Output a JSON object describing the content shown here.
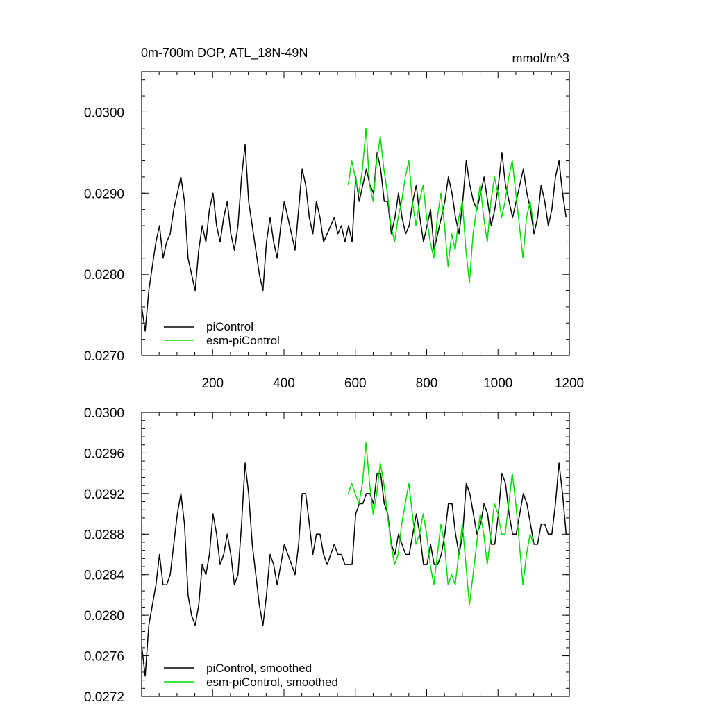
{
  "chart_data": [
    {
      "type": "line",
      "title": "0m-700m DOP, ATL_18N-49N",
      "units": "mmol/m^3",
      "xlabel": "",
      "ylabel": "",
      "xlim": [
        1,
        1200
      ],
      "ylim": [
        0.027,
        0.0305
      ],
      "xticks": [
        200,
        400,
        600,
        800,
        1000,
        1200
      ],
      "xtick_labels": [
        "200",
        "400",
        "600",
        "800",
        "1000",
        "1200"
      ],
      "yticks": [
        0.027,
        0.028,
        0.029,
        0.03
      ],
      "ytick_labels": [
        "0.0270",
        "0.0280",
        "0.0290",
        "0.0300"
      ],
      "grid": false,
      "legend_position": "bottom-left",
      "series": [
        {
          "name": "piControl",
          "color": "#000000",
          "x_start": 1,
          "x_step": 10,
          "values": [
            0.0276,
            0.0273,
            0.0278,
            0.0281,
            0.0284,
            0.0286,
            0.0282,
            0.0284,
            0.0285,
            0.0288,
            0.029,
            0.0292,
            0.0289,
            0.0282,
            0.028,
            0.0278,
            0.0283,
            0.0286,
            0.0284,
            0.0288,
            0.029,
            0.0286,
            0.0284,
            0.0287,
            0.0289,
            0.0285,
            0.0283,
            0.0286,
            0.0292,
            0.0296,
            0.0289,
            0.0286,
            0.0283,
            0.028,
            0.0278,
            0.0284,
            0.0287,
            0.0284,
            0.0282,
            0.0286,
            0.0289,
            0.0287,
            0.0285,
            0.0283,
            0.0288,
            0.0293,
            0.0291,
            0.0287,
            0.0285,
            0.0289,
            0.0287,
            0.0284,
            0.0285,
            0.0286,
            0.0287,
            0.0285,
            0.0286,
            0.0284,
            0.0286,
            0.0284,
            0.0292,
            0.0289,
            0.0291,
            0.0293,
            0.0291,
            0.029,
            0.0295,
            0.0293,
            0.0289,
            0.0289,
            0.0285,
            0.0287,
            0.029,
            0.0287,
            0.0285,
            0.0286,
            0.0289,
            0.0291,
            0.0287,
            0.0284,
            0.0286,
            0.0288,
            0.0283,
            0.0285,
            0.0287,
            0.0289,
            0.0292,
            0.029,
            0.0287,
            0.0285,
            0.0289,
            0.0294,
            0.0291,
            0.0289,
            0.0288,
            0.029,
            0.0292,
            0.0289,
            0.0286,
            0.0288,
            0.0291,
            0.0295,
            0.0291,
            0.0289,
            0.0287,
            0.0289,
            0.0291,
            0.0293,
            0.029,
            0.0288,
            0.0285,
            0.0287,
            0.0291,
            0.0289,
            0.0286,
            0.0288,
            0.0292,
            0.0294,
            0.029,
            0.0287
          ]
        },
        {
          "name": "esm-piControl",
          "color": "#00dd00",
          "x_start": 580,
          "x_step": 10,
          "values": [
            0.0291,
            0.0294,
            0.0292,
            0.029,
            0.0293,
            0.0298,
            0.0291,
            0.0289,
            0.0294,
            0.0297,
            0.0293,
            0.029,
            0.0286,
            0.0284,
            0.0287,
            0.0289,
            0.0292,
            0.0294,
            0.0289,
            0.0286,
            0.0289,
            0.0291,
            0.0287,
            0.0284,
            0.0282,
            0.0287,
            0.029,
            0.0286,
            0.0281,
            0.0285,
            0.0283,
            0.0287,
            0.0289,
            0.0283,
            0.0279,
            0.0285,
            0.0288,
            0.0291,
            0.0287,
            0.0284,
            0.0289,
            0.0292,
            0.029,
            0.0287,
            0.0289,
            0.0292,
            0.0294,
            0.029,
            0.0286,
            0.0282,
            0.0287,
            0.0289,
            0.0286
          ]
        }
      ]
    },
    {
      "type": "line",
      "title": "",
      "xlabel": "",
      "ylabel": "",
      "xlim": [
        1,
        1200
      ],
      "ylim": [
        0.0272,
        0.03
      ],
      "xticks": [
        200,
        400,
        600,
        800,
        1000,
        1200
      ],
      "yticks": [
        0.0272,
        0.0276,
        0.028,
        0.0284,
        0.0288,
        0.0292,
        0.0296,
        0.03
      ],
      "ytick_labels": [
        "0.0272",
        "0.0276",
        "0.0280",
        "0.0284",
        "0.0288",
        "0.0292",
        "0.0296",
        "0.0300"
      ],
      "grid": false,
      "legend_position": "bottom-left",
      "series": [
        {
          "name": "piControl, smoothed",
          "color": "#000000",
          "x_start": 1,
          "x_step": 10,
          "values": [
            0.0277,
            0.0274,
            0.0279,
            0.0281,
            0.0283,
            0.0286,
            0.0283,
            0.0283,
            0.0284,
            0.0287,
            0.029,
            0.0292,
            0.0289,
            0.0282,
            0.028,
            0.0279,
            0.0281,
            0.0285,
            0.0284,
            0.0286,
            0.029,
            0.0288,
            0.0285,
            0.0286,
            0.0288,
            0.0286,
            0.0283,
            0.0284,
            0.0289,
            0.0295,
            0.0292,
            0.0287,
            0.0284,
            0.0281,
            0.0279,
            0.0282,
            0.0286,
            0.0285,
            0.0283,
            0.0285,
            0.0287,
            0.0286,
            0.0285,
            0.0284,
            0.0287,
            0.0292,
            0.0292,
            0.0289,
            0.0286,
            0.0288,
            0.0288,
            0.0286,
            0.0285,
            0.0286,
            0.0287,
            0.0286,
            0.0286,
            0.0285,
            0.0285,
            0.0285,
            0.029,
            0.0291,
            0.0291,
            0.0292,
            0.0292,
            0.0291,
            0.0294,
            0.0294,
            0.0291,
            0.029,
            0.0287,
            0.0286,
            0.0288,
            0.0287,
            0.0286,
            0.0286,
            0.0288,
            0.029,
            0.0288,
            0.0285,
            0.0285,
            0.0287,
            0.0285,
            0.0285,
            0.0286,
            0.0288,
            0.0291,
            0.0291,
            0.0288,
            0.0286,
            0.0288,
            0.0293,
            0.0292,
            0.029,
            0.0288,
            0.0289,
            0.0291,
            0.029,
            0.0287,
            0.0287,
            0.029,
            0.0294,
            0.0293,
            0.029,
            0.0288,
            0.0288,
            0.029,
            0.0292,
            0.0291,
            0.0289,
            0.0287,
            0.0287,
            0.0289,
            0.0289,
            0.0288,
            0.0288,
            0.0291,
            0.0295,
            0.0292,
            0.0288
          ]
        },
        {
          "name": "esm-piControl, smoothed",
          "color": "#00dd00",
          "x_start": 580,
          "x_step": 10,
          "values": [
            0.0292,
            0.0293,
            0.0292,
            0.0291,
            0.0293,
            0.0297,
            0.0293,
            0.029,
            0.0292,
            0.0295,
            0.0293,
            0.029,
            0.0287,
            0.0285,
            0.0286,
            0.0289,
            0.0291,
            0.0293,
            0.029,
            0.0287,
            0.0288,
            0.029,
            0.0288,
            0.0285,
            0.0283,
            0.0286,
            0.0289,
            0.0287,
            0.0283,
            0.0284,
            0.0283,
            0.0286,
            0.0289,
            0.0285,
            0.0281,
            0.0284,
            0.0287,
            0.029,
            0.0288,
            0.0285,
            0.0288,
            0.0291,
            0.029,
            0.0288,
            0.0288,
            0.0291,
            0.0294,
            0.0291,
            0.0287,
            0.0283,
            0.0286,
            0.0288,
            0.0287
          ]
        }
      ]
    }
  ]
}
